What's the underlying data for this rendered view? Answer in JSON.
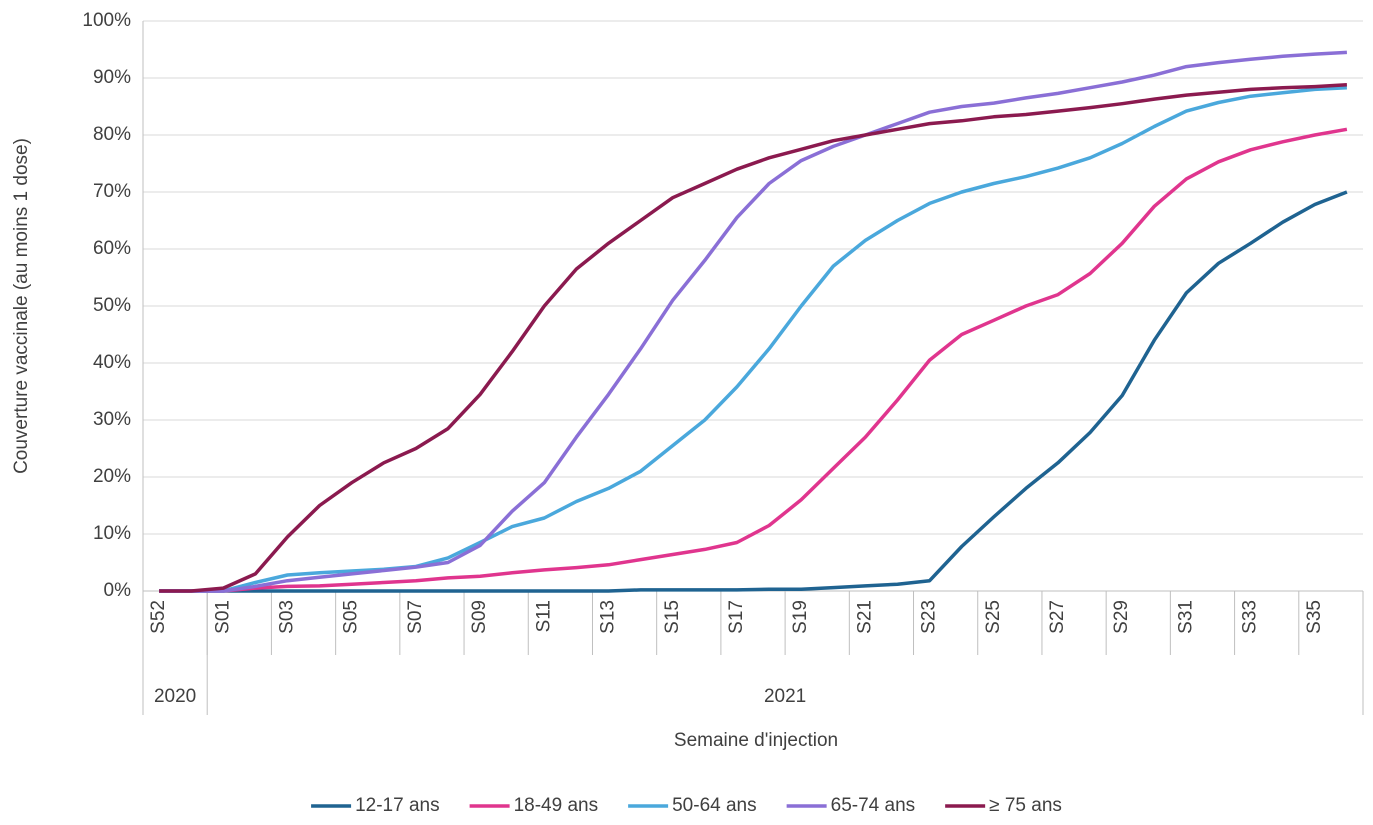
{
  "chart_data": {
    "type": "line",
    "y_label": "Couverture vaccinale (au moins 1 dose)",
    "x_label": "Semaine d'injection",
    "categories": [
      "S52",
      null,
      "S01",
      null,
      "S03",
      null,
      "S05",
      null,
      "S07",
      null,
      "S09",
      null,
      "S11",
      null,
      "S13",
      null,
      "S15",
      null,
      "S17",
      null,
      "S19",
      null,
      "S21",
      null,
      "S23",
      null,
      "S25",
      null,
      "S27",
      null,
      "S29",
      null,
      "S31",
      null,
      "S33",
      null,
      "S35",
      null
    ],
    "x_groups": [
      {
        "label": "2020",
        "count": 2
      },
      {
        "label": "2021",
        "count": 36
      }
    ],
    "ylim": [
      0,
      100
    ],
    "yticks": [
      {
        "value": 0,
        "label": "0%"
      },
      {
        "value": 10,
        "label": "10%"
      },
      {
        "value": 20,
        "label": "20%"
      },
      {
        "value": 30,
        "label": "30%"
      },
      {
        "value": 40,
        "label": "40%"
      },
      {
        "value": 50,
        "label": "50%"
      },
      {
        "value": 60,
        "label": "60%"
      },
      {
        "value": 70,
        "label": "70%"
      },
      {
        "value": 80,
        "label": "80%"
      },
      {
        "value": 90,
        "label": "90%"
      },
      {
        "value": 100,
        "label": "100%"
      }
    ],
    "grid": true,
    "legend": "bottom",
    "series": [
      {
        "name": "12-17 ans",
        "color": "#1f6391",
        "values": [
          0,
          0,
          0,
          0,
          0,
          0,
          0,
          0,
          0,
          0,
          0,
          0,
          0,
          0,
          0,
          0.2,
          0.2,
          0.2,
          0.2,
          0.3,
          0.3,
          0.6,
          0.9,
          1.2,
          1.8,
          7.8,
          13,
          18,
          22.5,
          27.8,
          34.3,
          44,
          52.3,
          57.5,
          61,
          64.7,
          67.8,
          70
        ]
      },
      {
        "name": "18-49 ans",
        "color": "#e0358e",
        "values": [
          0,
          0,
          0,
          0.5,
          0.8,
          0.9,
          1.2,
          1.5,
          1.8,
          2.3,
          2.6,
          3.2,
          3.7,
          4.1,
          4.6,
          5.5,
          6.4,
          7.3,
          8.5,
          11.5,
          16,
          21.5,
          27,
          33.5,
          40.5,
          45,
          47.5,
          50,
          52,
          55.7,
          61,
          67.5,
          72.3,
          75.3,
          77.4,
          78.8,
          80,
          81
        ]
      },
      {
        "name": "50-64 ans",
        "color": "#4aa8dc",
        "values": [
          0,
          0,
          0,
          1.5,
          2.8,
          3.2,
          3.5,
          3.8,
          4.3,
          5.8,
          8.5,
          11.3,
          12.8,
          15.7,
          18,
          21,
          25.5,
          30,
          35.8,
          42.5,
          50,
          57,
          61.5,
          65,
          68,
          70,
          71.5,
          72.7,
          74.2,
          76,
          78.5,
          81.5,
          84.2,
          85.7,
          86.8,
          87.4,
          88,
          88.3
        ]
      },
      {
        "name": "65-74 ans",
        "color": "#8a6fd6",
        "values": [
          0,
          0,
          0,
          0.8,
          1.8,
          2.4,
          3,
          3.6,
          4.2,
          5,
          8,
          14,
          19,
          27,
          34.5,
          42.5,
          51,
          58,
          65.5,
          71.5,
          75.5,
          78,
          80,
          82,
          84,
          85,
          85.6,
          86.5,
          87.3,
          88.3,
          89.3,
          90.5,
          92,
          92.7,
          93.3,
          93.8,
          94.2,
          94.5
        ]
      },
      {
        "name": "≥ 75 ans",
        "color": "#8b1a4f",
        "values": [
          0,
          0,
          0.5,
          3,
          9.5,
          15,
          19,
          22.5,
          25,
          28.5,
          34.5,
          42,
          50,
          56.5,
          61,
          65,
          69,
          71.5,
          74,
          76,
          77.5,
          79,
          80,
          81,
          82,
          82.5,
          83.2,
          83.6,
          84.2,
          84.8,
          85.5,
          86.3,
          87,
          87.5,
          88,
          88.3,
          88.5,
          88.8
        ]
      }
    ]
  }
}
